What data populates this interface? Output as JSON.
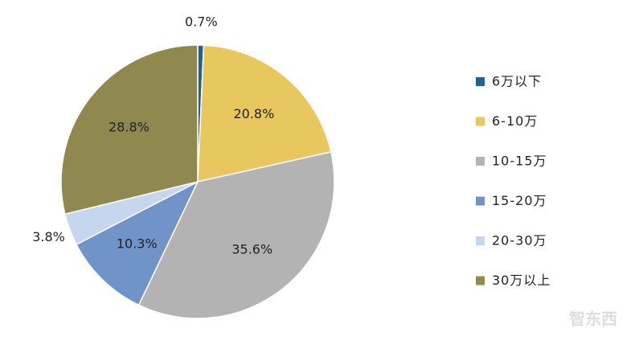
{
  "chart_data": {
    "type": "pie",
    "categories": [
      "6万以下",
      "6-10万",
      "10-15万",
      "15-20万",
      "20-30万",
      "30万以上"
    ],
    "values": [
      0.7,
      20.8,
      35.6,
      10.3,
      3.8,
      28.8
    ],
    "value_labels": [
      "0.7%",
      "20.8%",
      "35.6%",
      "10.3%",
      "3.8%",
      "28.8%"
    ],
    "colors": [
      "#1f6394",
      "#e9c75f",
      "#b3b3b3",
      "#7093c8",
      "#c6d6ec",
      "#8f894f"
    ],
    "legend": "right"
  },
  "watermark": "智东西"
}
